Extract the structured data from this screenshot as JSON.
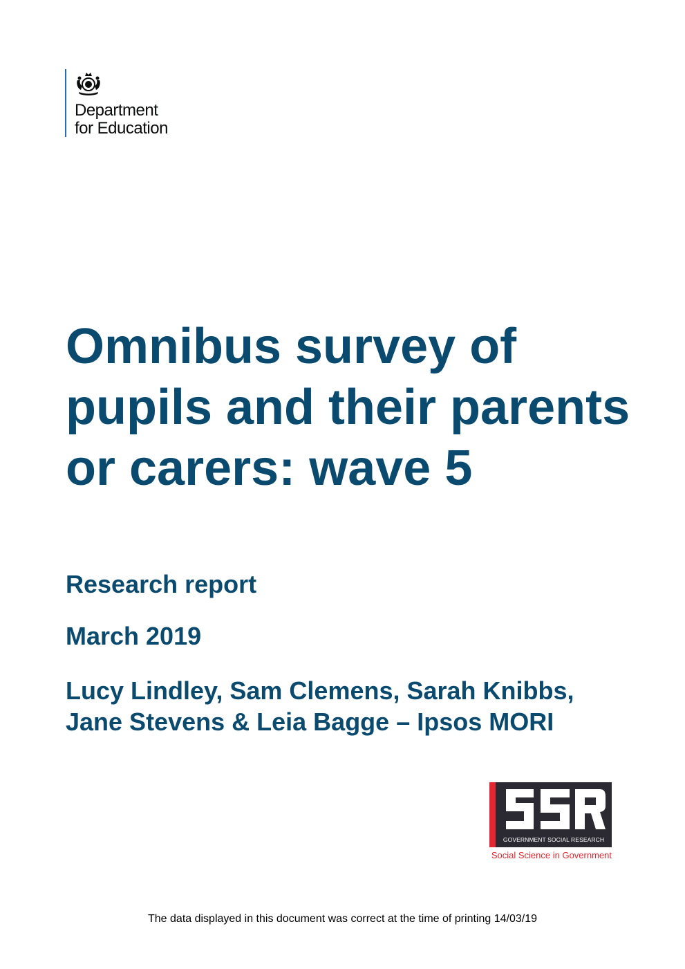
{
  "logo": {
    "icon": "royal-coat-of-arms-icon",
    "line1": "Department",
    "line2": "for Education"
  },
  "title": "Omnibus survey of pupils and their parents or carers: wave 5",
  "subtitle": "Research report",
  "date": "March 2019",
  "authors": "Lucy Lindley, Sam Clemens, Sarah Knibbs, Jane Stevens & Leia Bagge – Ipsos MORI",
  "gsr_logo": {
    "letters": "GSR",
    "caption": "GOVERNMENT SOCIAL RESEARCH",
    "tagline": "Social Science in Government",
    "colors": {
      "box": "#2b2a33",
      "accent": "#e3262f"
    }
  },
  "footer_note": "The data displayed in this document was correct at the time of printing 14/03/19",
  "colors": {
    "title": "#0b4a6f",
    "logo_rule": "#1d70b8"
  }
}
